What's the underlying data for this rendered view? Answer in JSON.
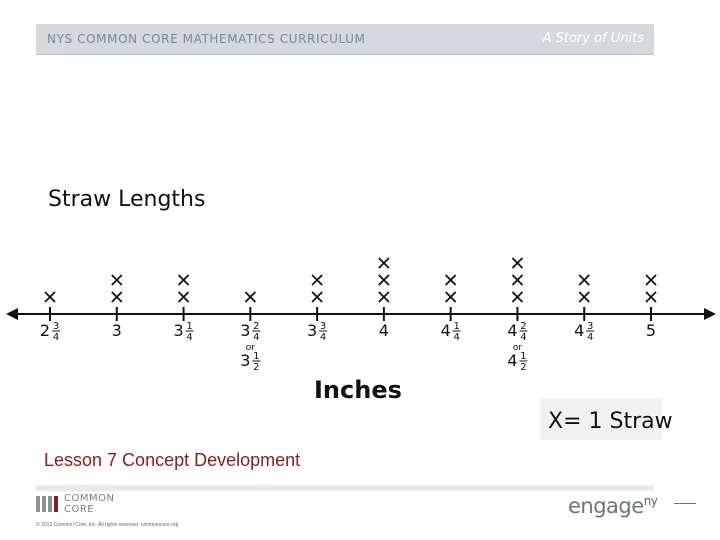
{
  "header": {
    "left_text": "NYS COMMON CORE MATHEMATICS CURRICULUM",
    "right_text": "A Story of Units"
  },
  "chart_data": {
    "type": "line plot",
    "title": "Straw Lengths",
    "xlabel": "Inches",
    "legend": "X= 1 Straw",
    "ticks": [
      {
        "label": "2¾",
        "value": 2.75,
        "count": 1
      },
      {
        "label": "3",
        "value": 3.0,
        "count": 2
      },
      {
        "label": "3¼",
        "value": 3.25,
        "count": 2
      },
      {
        "label": "3²⁄₄ or 3½",
        "value": 3.5,
        "count": 1
      },
      {
        "label": "3¾",
        "value": 3.75,
        "count": 2
      },
      {
        "label": "4",
        "value": 4.0,
        "count": 3
      },
      {
        "label": "4¼",
        "value": 4.25,
        "count": 2
      },
      {
        "label": "4²⁄₄ or 4½",
        "value": 4.5,
        "count": 3
      },
      {
        "label": "4¾",
        "value": 4.75,
        "count": 2
      },
      {
        "label": "5",
        "value": 5.0,
        "count": 2
      }
    ]
  },
  "lesson_title": "Lesson 7 Concept Development",
  "footer": {
    "logo_text_line1": "COMMON",
    "logo_text_line2": "CORE",
    "copyright": "© 2012 Common Core, Inc. All rights reserved. commoncore.org",
    "brand": "engage",
    "brand_sup": "ny"
  }
}
